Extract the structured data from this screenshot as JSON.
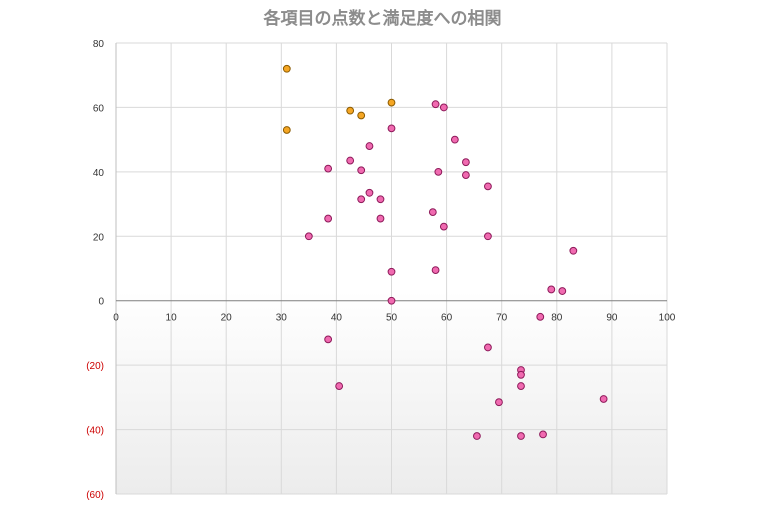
{
  "chart_data": {
    "type": "scatter",
    "title": "各項目の点数と満足度への相関",
    "xlabel": "",
    "ylabel": "",
    "xlim": [
      0,
      100
    ],
    "ylim": [
      -60,
      80
    ],
    "x_ticks": [
      "0",
      "10",
      "20",
      "30",
      "40",
      "50",
      "60",
      "70",
      "80",
      "90",
      "100"
    ],
    "y_ticks": [
      {
        "value": 80,
        "label": "80"
      },
      {
        "value": 60,
        "label": "60"
      },
      {
        "value": 40,
        "label": "40"
      },
      {
        "value": 20,
        "label": "20"
      },
      {
        "value": 0,
        "label": "0"
      },
      {
        "value": -20,
        "label": "(20)"
      },
      {
        "value": -40,
        "label": "(40)"
      },
      {
        "value": -60,
        "label": "(60)"
      }
    ],
    "grid": true,
    "colors": {
      "highlight_fill": "#f5a623",
      "highlight_stroke": "#8a5a00",
      "normal_fill": "#f06ab0",
      "normal_stroke": "#8e1a5a",
      "negative_tick": "#cc0000",
      "title": "#8c8c8c"
    },
    "series": [
      {
        "points": [
          [
            31,
            72
          ],
          [
            31,
            53
          ],
          [
            42.5,
            59
          ],
          [
            44.5,
            57.5
          ],
          [
            50,
            61.5
          ]
        ]
      },
      {
        "points": [
          [
            58,
            61
          ],
          [
            59.5,
            60
          ],
          [
            61.5,
            50
          ],
          [
            63.5,
            43
          ],
          [
            63.5,
            39
          ],
          [
            67.5,
            35.5
          ],
          [
            67.5,
            20
          ],
          [
            50,
            53.5
          ],
          [
            46,
            48
          ],
          [
            42.5,
            43.5
          ],
          [
            38.5,
            41
          ],
          [
            44.5,
            40.5
          ],
          [
            58.5,
            40
          ],
          [
            46,
            33.5
          ],
          [
            48,
            31.5
          ],
          [
            44.5,
            31.5
          ],
          [
            57.5,
            27.5
          ],
          [
            48,
            25.5
          ],
          [
            38.5,
            25.5
          ],
          [
            59.5,
            23
          ],
          [
            35,
            20
          ],
          [
            83,
            15.5
          ],
          [
            58,
            9.5
          ],
          [
            50,
            9
          ],
          [
            79,
            3.5
          ],
          [
            81,
            3
          ],
          [
            50,
            0
          ],
          [
            77,
            -5
          ],
          [
            38.5,
            -12
          ],
          [
            67.5,
            -14.5
          ],
          [
            73.5,
            -21.5
          ],
          [
            73.5,
            -23
          ],
          [
            73.5,
            -26.5
          ],
          [
            40.5,
            -26.5
          ],
          [
            88.5,
            -30.5
          ],
          [
            69.5,
            -31.5
          ],
          [
            65.5,
            -42
          ],
          [
            73.5,
            -42
          ],
          [
            77.5,
            -41.5
          ]
        ]
      }
    ]
  }
}
